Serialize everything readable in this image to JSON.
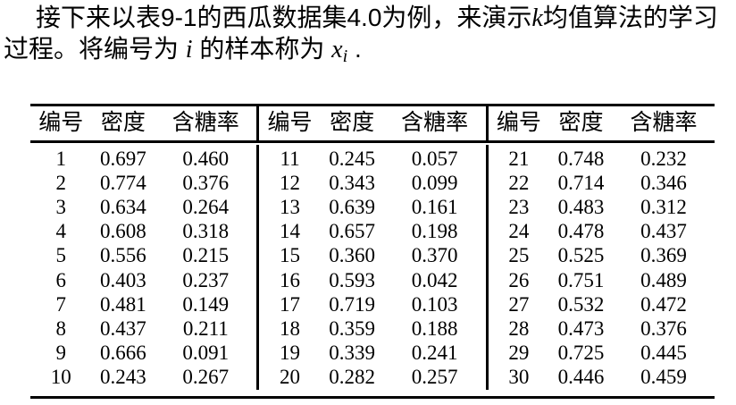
{
  "paragraph": {
    "line1_pre": "接下来以表9-1的西瓜数据集4.0为例，来演示",
    "line1_math": "k",
    "line1_post": "均值算法的学习",
    "line2_pre": "过程。将编号为 ",
    "line2_math_i": "i",
    "line2_mid": " 的样本称为 ",
    "line2_math_x": "x",
    "line2_math_sub": "i",
    "line2_end": " ."
  },
  "table": {
    "headers": [
      "编号",
      "密度",
      "含糖率"
    ],
    "groups": [
      {
        "rows": [
          [
            "1",
            "0.697",
            "0.460"
          ],
          [
            "2",
            "0.774",
            "0.376"
          ],
          [
            "3",
            "0.634",
            "0.264"
          ],
          [
            "4",
            "0.608",
            "0.318"
          ],
          [
            "5",
            "0.556",
            "0.215"
          ],
          [
            "6",
            "0.403",
            "0.237"
          ],
          [
            "7",
            "0.481",
            "0.149"
          ],
          [
            "8",
            "0.437",
            "0.211"
          ],
          [
            "9",
            "0.666",
            "0.091"
          ],
          [
            "10",
            "0.243",
            "0.267"
          ]
        ]
      },
      {
        "rows": [
          [
            "11",
            "0.245",
            "0.057"
          ],
          [
            "12",
            "0.343",
            "0.099"
          ],
          [
            "13",
            "0.639",
            "0.161"
          ],
          [
            "14",
            "0.657",
            "0.198"
          ],
          [
            "15",
            "0.360",
            "0.370"
          ],
          [
            "16",
            "0.593",
            "0.042"
          ],
          [
            "17",
            "0.719",
            "0.103"
          ],
          [
            "18",
            "0.359",
            "0.188"
          ],
          [
            "19",
            "0.339",
            "0.241"
          ],
          [
            "20",
            "0.282",
            "0.257"
          ]
        ]
      },
      {
        "rows": [
          [
            "21",
            "0.748",
            "0.232"
          ],
          [
            "22",
            "0.714",
            "0.346"
          ],
          [
            "23",
            "0.483",
            "0.312"
          ],
          [
            "24",
            "0.478",
            "0.437"
          ],
          [
            "25",
            "0.525",
            "0.369"
          ],
          [
            "26",
            "0.751",
            "0.489"
          ],
          [
            "27",
            "0.532",
            "0.472"
          ],
          [
            "28",
            "0.473",
            "0.376"
          ],
          [
            "29",
            "0.725",
            "0.445"
          ],
          [
            "30",
            "0.446",
            "0.459"
          ]
        ]
      }
    ]
  }
}
